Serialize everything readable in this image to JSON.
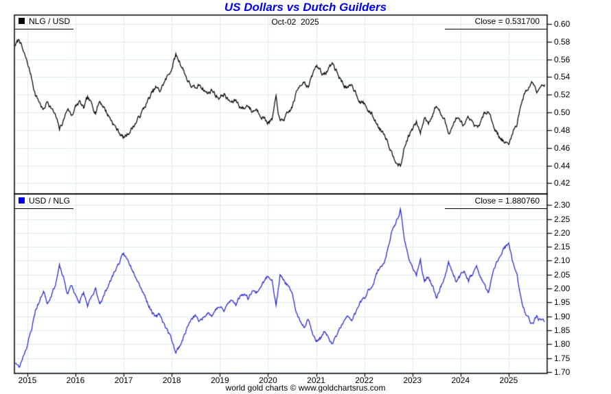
{
  "title": "US Dollars vs Dutch Guilders",
  "date_label": "Oct-02  2025",
  "footer": "world gold charts © www.goldchartsrus.com",
  "colors": {
    "title": "#0000EE",
    "grid": "#DCE7F3",
    "axis": "#000000",
    "top_series": "#000000",
    "top_swatch": "#000000",
    "bottom_series": "#2222CC",
    "bottom_swatch": "#0000EE"
  },
  "x_axis": {
    "tick_years": [
      2015,
      2016,
      2017,
      2018,
      2019,
      2020,
      2021,
      2022,
      2023,
      2024,
      2025
    ],
    "xlim": [
      2014.73,
      2025.8
    ]
  },
  "chart_data": [
    {
      "type": "line",
      "legend_label": "NLG / USD",
      "close_label": "Close = 0.531700",
      "close": 0.5317,
      "ylim": [
        0.408,
        0.61
      ],
      "y_ticks": [
        0.6,
        0.58,
        0.56,
        0.54,
        0.52,
        0.5,
        0.48,
        0.46,
        0.44,
        0.42
      ],
      "x_sampling": "monthly",
      "x_start": 2014.75,
      "x_end": 2025.75,
      "values": [
        0.576,
        0.583,
        0.568,
        0.556,
        0.54,
        0.52,
        0.512,
        0.502,
        0.513,
        0.505,
        0.496,
        0.481,
        0.491,
        0.505,
        0.497,
        0.506,
        0.512,
        0.504,
        0.516,
        0.509,
        0.501,
        0.513,
        0.507,
        0.498,
        0.491,
        0.483,
        0.477,
        0.471,
        0.476,
        0.482,
        0.488,
        0.496,
        0.504,
        0.513,
        0.521,
        0.528,
        0.524,
        0.533,
        0.541,
        0.55,
        0.565,
        0.557,
        0.547,
        0.536,
        0.529,
        0.526,
        0.532,
        0.526,
        0.521,
        0.526,
        0.519,
        0.517,
        0.521,
        0.514,
        0.511,
        0.514,
        0.507,
        0.504,
        0.509,
        0.501,
        0.504,
        0.499,
        0.494,
        0.489,
        0.491,
        0.516,
        0.489,
        0.493,
        0.498,
        0.506,
        0.521,
        0.532,
        0.536,
        0.528,
        0.541,
        0.553,
        0.549,
        0.541,
        0.549,
        0.556,
        0.547,
        0.538,
        0.531,
        0.527,
        0.53,
        0.522,
        0.512,
        0.51,
        0.502,
        0.497,
        0.488,
        0.481,
        0.477,
        0.466,
        0.453,
        0.446,
        0.438,
        0.46,
        0.473,
        0.481,
        0.488,
        0.477,
        0.494,
        0.489,
        0.498,
        0.508,
        0.499,
        0.491,
        0.477,
        0.485,
        0.494,
        0.489,
        0.485,
        0.492,
        0.487,
        0.482,
        0.489,
        0.498,
        0.504,
        0.488,
        0.478,
        0.471,
        0.466,
        0.463,
        0.478,
        0.486,
        0.509,
        0.521,
        0.529,
        0.535,
        0.526,
        0.531,
        0.5317
      ]
    },
    {
      "type": "line",
      "legend_label": "USD / NLG",
      "close_label": "Close = 1.880760",
      "close": 1.88076,
      "ylim": [
        1.695,
        2.34
      ],
      "y_ticks": [
        2.3,
        2.25,
        2.2,
        2.15,
        2.1,
        2.05,
        2.0,
        1.95,
        1.9,
        1.85,
        1.8,
        1.75,
        1.7
      ],
      "x_sampling": "monthly",
      "x_start": 2014.75,
      "x_end": 2025.75,
      "values": [
        1.736,
        1.715,
        1.761,
        1.799,
        1.852,
        1.923,
        1.953,
        1.992,
        1.949,
        1.98,
        2.016,
        2.079,
        2.037,
        1.98,
        2.012,
        1.976,
        1.953,
        1.984,
        1.938,
        1.965,
        1.996,
        1.949,
        1.972,
        2.008,
        2.037,
        2.07,
        2.096,
        2.123,
        2.101,
        2.075,
        2.049,
        2.016,
        1.984,
        1.949,
        1.919,
        1.894,
        1.908,
        1.876,
        1.848,
        1.818,
        1.77,
        1.795,
        1.828,
        1.866,
        1.89,
        1.901,
        1.88,
        1.901,
        1.919,
        1.901,
        1.927,
        1.934,
        1.919,
        1.946,
        1.957,
        1.946,
        1.972,
        1.984,
        1.965,
        1.996,
        1.984,
        2.004,
        2.024,
        2.045,
        2.037,
        1.938,
        2.045,
        2.028,
        2.008,
        1.976,
        1.919,
        1.88,
        1.866,
        1.894,
        1.848,
        1.808,
        1.821,
        1.848,
        1.821,
        1.799,
        1.828,
        1.859,
        1.883,
        1.898,
        1.887,
        1.916,
        1.953,
        1.961,
        1.992,
        2.012,
        2.049,
        2.079,
        2.096,
        2.146,
        2.208,
        2.242,
        2.283,
        2.174,
        2.114,
        2.079,
        2.049,
        2.096,
        2.024,
        2.045,
        2.008,
        1.969,
        2.004,
        2.037,
        2.096,
        2.062,
        2.024,
        2.045,
        2.062,
        2.033,
        2.053,
        2.075,
        2.045,
        2.008,
        1.984,
        2.049,
        2.092,
        2.123,
        2.146,
        2.16,
        2.092,
        2.058,
        1.965,
        1.919,
        1.89,
        1.869,
        1.901,
        1.883,
        1.8808
      ]
    }
  ]
}
